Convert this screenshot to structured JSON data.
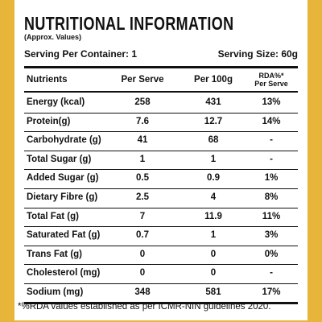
{
  "header": {
    "title": "NUTRITIONAL INFORMATION",
    "subtitle": "(Approx. Values)"
  },
  "serving": {
    "per_container": "Serving Per Container: 1",
    "size": "Serving Size: 60g"
  },
  "table": {
    "columns": [
      "Nutrients",
      "Per Serve",
      "Per 100g",
      [
        "RDA%*",
        "Per Serve"
      ]
    ],
    "rows": [
      [
        "Energy (kcal)",
        "258",
        "431",
        "13%"
      ],
      [
        "Protein(g)",
        "7.6",
        "12.7",
        "14%"
      ],
      [
        "Carbohydrate (g)",
        "41",
        "68",
        "-"
      ],
      [
        "Total Sugar (g)",
        "1",
        "1",
        "-"
      ],
      [
        "Added Sugar (g)",
        "0.5",
        "0.9",
        "1%"
      ],
      [
        "Dietary Fibre (g)",
        "2.5",
        "4",
        "8%"
      ],
      [
        "Total Fat (g)",
        "7",
        "11.9",
        "11%"
      ],
      [
        "Saturated Fat (g)",
        "0.7",
        "1",
        "3%"
      ],
      [
        "Trans Fat (g)",
        "0",
        "0",
        "0%"
      ],
      [
        "Cholesterol (mg)",
        "0",
        "0",
        "-"
      ],
      [
        "Sodium (mg)",
        "348",
        "581",
        "17%"
      ]
    ]
  },
  "footnote": "*%RDA values established as per ICMR-NIN guidelines 2020."
}
